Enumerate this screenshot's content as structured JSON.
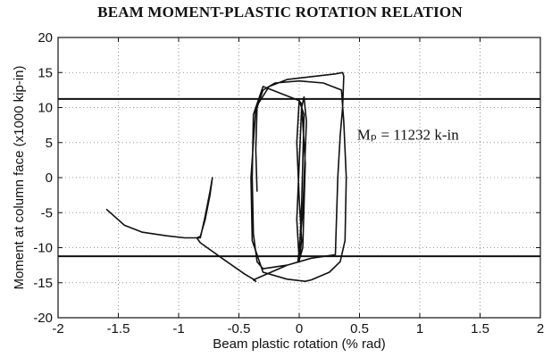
{
  "chart_data": {
    "type": "line",
    "title": "BEAM MOMENT-PLASTIC ROTATION RELATION",
    "xlabel": "Beam plastic rotation (% rad)",
    "ylabel": "Moment at column face (x1000 kip-in)",
    "xlim": [
      -2,
      2
    ],
    "ylim": [
      -20,
      20
    ],
    "xticks": [
      -2,
      -1.5,
      -1,
      -0.5,
      0,
      0.5,
      1,
      1.5,
      2
    ],
    "yticks": [
      -20,
      -15,
      -10,
      -5,
      0,
      5,
      10,
      15,
      20
    ],
    "grid": "dotted",
    "annotation": "Mₚ = 11232 k-in",
    "reference_lines": [
      11.232,
      -11.232
    ],
    "series": [
      {
        "x": [
          -1.6,
          -1.45,
          -1.3,
          -1.1,
          -0.95,
          -0.82,
          -0.78,
          -0.74,
          -0.72,
          -0.74,
          -0.78,
          -0.82,
          -0.85,
          -0.82,
          -0.6,
          -0.45,
          -0.38,
          -0.36,
          -0.38,
          -0.3,
          -0.1,
          0.0,
          0.02,
          0.0,
          -0.02,
          0.0,
          0.04,
          0.02,
          0.0,
          -0.01,
          0.03,
          0.06,
          0.04,
          0.02,
          0.0,
          -0.02,
          0.0,
          0.03,
          0.05,
          0.02,
          0.0,
          -0.3,
          -0.38,
          -0.39,
          -0.38,
          -0.35,
          -0.3,
          -0.1,
          0.1,
          0.3,
          0.32,
          0.34,
          0.36,
          0.37,
          0.36,
          0.3,
          0.05,
          -0.1,
          -0.25,
          -0.36,
          -0.4,
          -0.39,
          -0.3,
          -0.1,
          0.05,
          0.1,
          0.25,
          0.34,
          0.38,
          0.39,
          0.37,
          0.35,
          0.2,
          0.0,
          -0.2,
          -0.3,
          -0.35,
          -0.36,
          -0.35
        ],
        "y": [
          -4.5,
          -6.8,
          -7.8,
          -8.3,
          -8.6,
          -8.6,
          -5.5,
          -2.0,
          0.0,
          -2.5,
          -6.0,
          -8.4,
          -8.6,
          -9.3,
          -12.0,
          -13.8,
          -14.5,
          -14.8,
          -14.6,
          -14.0,
          -12.5,
          -12.0,
          -9.0,
          -3.0,
          5.0,
          11.0,
          9.0,
          -4.0,
          -11.5,
          -12.0,
          -5.0,
          8.0,
          11.5,
          10.0,
          2.0,
          -6.0,
          -11.8,
          -10.0,
          2.0,
          10.5,
          11.0,
          13.0,
          9.0,
          0.0,
          -8.0,
          -12.0,
          -13.0,
          -12.5,
          -11.5,
          -11.0,
          0.0,
          6.0,
          10.0,
          14.5,
          15.0,
          14.8,
          14.3,
          14.0,
          13.0,
          10.0,
          0.0,
          -9.0,
          -13.5,
          -14.5,
          -14.8,
          -14.6,
          -13.5,
          -12.0,
          -9.0,
          0.0,
          8.0,
          12.5,
          13.5,
          13.8,
          13.5,
          12.5,
          10.0,
          4.0,
          -2.0
        ]
      }
    ]
  }
}
